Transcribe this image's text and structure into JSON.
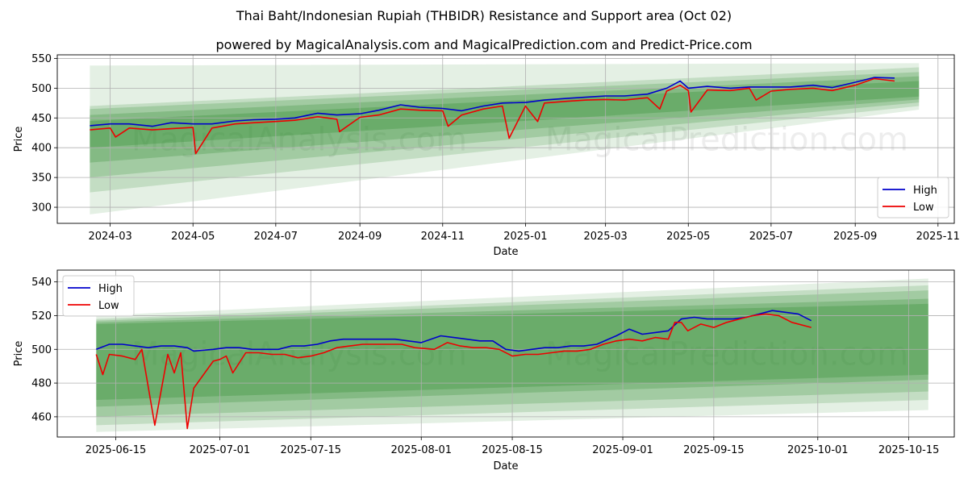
{
  "header": {
    "title": "Thai Baht/Indonesian Rupiah (THBIDR) Resistance and Support area (Oct 02)",
    "subtitle": "powered by MagicalAnalysis.com and MagicalPrediction.com and Predict-Price.com"
  },
  "watermark": {
    "left": "MagicalAnalysis.com",
    "right": "MagicalPrediction.com"
  },
  "colors": {
    "high": "#0000cc",
    "low": "#ee0000",
    "band": "#2e8b2e",
    "grid": "#b0b0b0"
  },
  "chart_data": [
    {
      "type": "line",
      "panel": "top",
      "title": "",
      "xlabel": "Date",
      "ylabel": "Price",
      "grid": true,
      "legend_position": "bottom-right",
      "xlim": [
        "2024-01-22",
        "2025-11-13"
      ],
      "ylim": [
        273,
        556
      ],
      "xticks": [
        {
          "date": "2024-03-01",
          "label": "2024-03"
        },
        {
          "date": "2024-05-01",
          "label": "2024-05"
        },
        {
          "date": "2024-07-01",
          "label": "2024-07"
        },
        {
          "date": "2024-09-01",
          "label": "2024-09"
        },
        {
          "date": "2024-11-01",
          "label": "2024-11"
        },
        {
          "date": "2025-01-01",
          "label": "2025-01"
        },
        {
          "date": "2025-03-01",
          "label": "2025-03"
        },
        {
          "date": "2025-05-01",
          "label": "2025-05"
        },
        {
          "date": "2025-07-01",
          "label": "2025-07"
        },
        {
          "date": "2025-09-01",
          "label": "2025-09"
        },
        {
          "date": "2025-11-01",
          "label": "2025-11"
        }
      ],
      "yticks": [
        300,
        350,
        400,
        450,
        500,
        550
      ],
      "bands": {
        "start": "2024-02-15",
        "end": "2025-10-18",
        "layers": [
          {
            "lower_start": 288,
            "lower_end": 464,
            "upper_start": 538,
            "upper_end": 542,
            "opacity": 0.13
          },
          {
            "lower_start": 325,
            "lower_end": 470,
            "upper_start": 470,
            "upper_end": 535,
            "opacity": 0.18
          },
          {
            "lower_start": 350,
            "lower_end": 476,
            "upper_start": 465,
            "upper_end": 527,
            "opacity": 0.22
          },
          {
            "lower_start": 375,
            "lower_end": 481,
            "upper_start": 455,
            "upper_end": 520,
            "opacity": 0.26
          },
          {
            "lower_start": 400,
            "lower_end": 486,
            "upper_start": 445,
            "upper_end": 512,
            "opacity": 0.3
          }
        ]
      },
      "series": [
        {
          "name": "High",
          "color": "#0000cc",
          "x": [
            "2024-02-15",
            "2024-03-01",
            "2024-03-15",
            "2024-04-01",
            "2024-04-15",
            "2024-05-01",
            "2024-05-15",
            "2024-06-01",
            "2024-06-15",
            "2024-07-01",
            "2024-07-15",
            "2024-08-01",
            "2024-08-15",
            "2024-09-01",
            "2024-09-15",
            "2024-10-01",
            "2024-10-15",
            "2024-11-01",
            "2024-11-15",
            "2024-12-01",
            "2024-12-15",
            "2025-01-01",
            "2025-01-15",
            "2025-02-01",
            "2025-02-15",
            "2025-03-01",
            "2025-03-15",
            "2025-04-01",
            "2025-04-15",
            "2025-04-25",
            "2025-05-01",
            "2025-05-15",
            "2025-06-01",
            "2025-06-15",
            "2025-07-01",
            "2025-07-15",
            "2025-08-01",
            "2025-08-15",
            "2025-09-01",
            "2025-09-15",
            "2025-09-30"
          ],
          "values": [
            437,
            440,
            440,
            436,
            442,
            440,
            440,
            445,
            447,
            448,
            450,
            458,
            455,
            457,
            463,
            472,
            468,
            466,
            462,
            470,
            475,
            476,
            480,
            483,
            485,
            487,
            487,
            490,
            500,
            512,
            500,
            503,
            500,
            502,
            502,
            502,
            505,
            501,
            510,
            518,
            517
          ]
        },
        {
          "name": "Low",
          "color": "#ee0000",
          "x": [
            "2024-02-15",
            "2024-03-01",
            "2024-03-05",
            "2024-03-15",
            "2024-04-01",
            "2024-04-15",
            "2024-05-01",
            "2024-05-03",
            "2024-05-15",
            "2024-06-01",
            "2024-06-15",
            "2024-07-01",
            "2024-07-15",
            "2024-08-01",
            "2024-08-15",
            "2024-08-17",
            "2024-09-01",
            "2024-09-15",
            "2024-10-01",
            "2024-10-15",
            "2024-11-01",
            "2024-11-05",
            "2024-11-15",
            "2024-12-01",
            "2024-12-15",
            "2024-12-20",
            "2025-01-01",
            "2025-01-10",
            "2025-01-15",
            "2025-02-01",
            "2025-02-15",
            "2025-03-01",
            "2025-03-15",
            "2025-04-01",
            "2025-04-10",
            "2025-04-15",
            "2025-04-25",
            "2025-05-01",
            "2025-05-03",
            "2025-05-15",
            "2025-06-01",
            "2025-06-15",
            "2025-06-20",
            "2025-07-01",
            "2025-07-15",
            "2025-08-01",
            "2025-08-15",
            "2025-09-01",
            "2025-09-15",
            "2025-09-30"
          ],
          "values": [
            430,
            433,
            418,
            433,
            430,
            432,
            434,
            390,
            433,
            440,
            442,
            444,
            446,
            452,
            448,
            427,
            451,
            455,
            465,
            463,
            462,
            436,
            455,
            465,
            470,
            416,
            470,
            444,
            475,
            478,
            480,
            481,
            480,
            484,
            465,
            495,
            505,
            496,
            460,
            497,
            496,
            500,
            480,
            495,
            498,
            500,
            496,
            505,
            516,
            512
          ]
        }
      ]
    },
    {
      "type": "line",
      "panel": "bottom",
      "title": "",
      "xlabel": "Date",
      "ylabel": "Price",
      "grid": true,
      "legend_position": "top-left",
      "xlim": [
        "2025-06-06",
        "2025-10-22"
      ],
      "ylim": [
        448,
        547
      ],
      "xticks": [
        {
          "date": "2025-06-15",
          "label": "2025-06-15"
        },
        {
          "date": "2025-07-01",
          "label": "2025-07-01"
        },
        {
          "date": "2025-07-15",
          "label": "2025-07-15"
        },
        {
          "date": "2025-08-01",
          "label": "2025-08-01"
        },
        {
          "date": "2025-08-15",
          "label": "2025-08-15"
        },
        {
          "date": "2025-09-01",
          "label": "2025-09-01"
        },
        {
          "date": "2025-09-15",
          "label": "2025-09-15"
        },
        {
          "date": "2025-10-01",
          "label": "2025-10-01"
        },
        {
          "date": "2025-10-15",
          "label": "2025-10-15"
        }
      ],
      "yticks": [
        460,
        480,
        500,
        520,
        540
      ],
      "bands": {
        "start": "2025-06-12",
        "end": "2025-10-18",
        "layers": [
          {
            "lower_start": 451,
            "lower_end": 464,
            "upper_start": 520,
            "upper_end": 542,
            "opacity": 0.13
          },
          {
            "lower_start": 455,
            "lower_end": 470,
            "upper_start": 518,
            "upper_end": 538,
            "opacity": 0.18
          },
          {
            "lower_start": 460,
            "lower_end": 475,
            "upper_start": 517,
            "upper_end": 535,
            "opacity": 0.22
          },
          {
            "lower_start": 466,
            "lower_end": 482,
            "upper_start": 516,
            "upper_end": 530,
            "opacity": 0.26
          },
          {
            "lower_start": 470,
            "lower_end": 485,
            "upper_start": 515,
            "upper_end": 527,
            "opacity": 0.3
          }
        ]
      },
      "series": [
        {
          "name": "High",
          "color": "#0000cc",
          "x": [
            "2025-06-12",
            "2025-06-14",
            "2025-06-16",
            "2025-06-18",
            "2025-06-20",
            "2025-06-22",
            "2025-06-24",
            "2025-06-26",
            "2025-06-27",
            "2025-06-30",
            "2025-07-02",
            "2025-07-04",
            "2025-07-06",
            "2025-07-08",
            "2025-07-10",
            "2025-07-12",
            "2025-07-14",
            "2025-07-16",
            "2025-07-18",
            "2025-07-20",
            "2025-07-22",
            "2025-07-24",
            "2025-07-26",
            "2025-07-28",
            "2025-07-30",
            "2025-08-01",
            "2025-08-04",
            "2025-08-06",
            "2025-08-08",
            "2025-08-10",
            "2025-08-12",
            "2025-08-14",
            "2025-08-16",
            "2025-08-18",
            "2025-08-20",
            "2025-08-22",
            "2025-08-24",
            "2025-08-26",
            "2025-08-28",
            "2025-08-31",
            "2025-09-02",
            "2025-09-04",
            "2025-09-06",
            "2025-09-08",
            "2025-09-10",
            "2025-09-12",
            "2025-09-14",
            "2025-09-16",
            "2025-09-18",
            "2025-09-20",
            "2025-09-22",
            "2025-09-24",
            "2025-09-26",
            "2025-09-28",
            "2025-09-30"
          ],
          "values": [
            500,
            503,
            503,
            502,
            501,
            502,
            502,
            501,
            499,
            500,
            501,
            501,
            500,
            500,
            500,
            502,
            502,
            503,
            505,
            506,
            506,
            506,
            506,
            506,
            505,
            504,
            508,
            507,
            506,
            505,
            505,
            500,
            499,
            500,
            501,
            501,
            502,
            502,
            503,
            508,
            512,
            509,
            510,
            511,
            518,
            519,
            518,
            518,
            518,
            519,
            521,
            523,
            522,
            521,
            517
          ]
        },
        {
          "name": "Low",
          "color": "#ee0000",
          "x": [
            "2025-06-12",
            "2025-06-13",
            "2025-06-14",
            "2025-06-16",
            "2025-06-18",
            "2025-06-19",
            "2025-06-21",
            "2025-06-23",
            "2025-06-24",
            "2025-06-25",
            "2025-06-26",
            "2025-06-27",
            "2025-06-30",
            "2025-07-01",
            "2025-07-02",
            "2025-07-03",
            "2025-07-05",
            "2025-07-07",
            "2025-07-09",
            "2025-07-11",
            "2025-07-13",
            "2025-07-15",
            "2025-07-17",
            "2025-07-19",
            "2025-07-21",
            "2025-07-23",
            "2025-07-25",
            "2025-07-27",
            "2025-07-29",
            "2025-07-31",
            "2025-08-03",
            "2025-08-05",
            "2025-08-07",
            "2025-08-09",
            "2025-08-11",
            "2025-08-13",
            "2025-08-15",
            "2025-08-17",
            "2025-08-19",
            "2025-08-21",
            "2025-08-23",
            "2025-08-25",
            "2025-08-27",
            "2025-08-29",
            "2025-08-31",
            "2025-09-02",
            "2025-09-04",
            "2025-09-06",
            "2025-09-08",
            "2025-09-09",
            "2025-09-10",
            "2025-09-11",
            "2025-09-13",
            "2025-09-15",
            "2025-09-17",
            "2025-09-19",
            "2025-09-21",
            "2025-09-23",
            "2025-09-25",
            "2025-09-27",
            "2025-09-30"
          ],
          "values": [
            497,
            485,
            497,
            496,
            494,
            500,
            455,
            497,
            486,
            498,
            453,
            477,
            493,
            494,
            496,
            486,
            498,
            498,
            497,
            497,
            495,
            496,
            498,
            501,
            502,
            503,
            503,
            503,
            503,
            501,
            500,
            504,
            502,
            501,
            501,
            500,
            496,
            497,
            497,
            498,
            499,
            499,
            500,
            503,
            505,
            506,
            505,
            507,
            506,
            516,
            516,
            511,
            515,
            513,
            516,
            518,
            520,
            521,
            520,
            516,
            513
          ]
        }
      ]
    }
  ]
}
